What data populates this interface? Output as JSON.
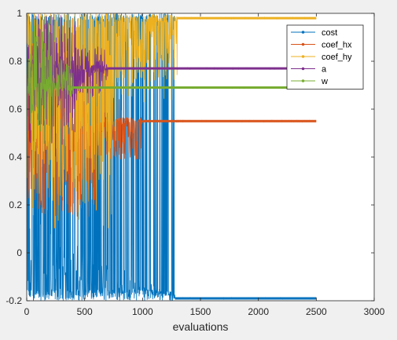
{
  "chart_data": {
    "type": "line",
    "title": "",
    "xlabel": "evaluations",
    "ylabel": "",
    "xlim": [
      0,
      3000
    ],
    "ylim": [
      -0.2,
      1
    ],
    "x_ticks": [
      0,
      500,
      1000,
      1500,
      2000,
      2500,
      3000
    ],
    "y_ticks": [
      -0.2,
      0,
      0.2,
      0.4,
      0.6,
      0.8,
      1
    ],
    "x_tick_labels": [
      "0",
      "500",
      "1000",
      "1500",
      "2000",
      "2500",
      "3000"
    ],
    "y_tick_labels": [
      "-0.2",
      "0",
      "0.2",
      "0.4",
      "0.6",
      "0.8",
      "1"
    ],
    "grid": false,
    "legend_position": "top-right",
    "n_evaluations": 2500,
    "series": [
      {
        "name": "cost",
        "color": "#0072BD",
        "marker": "dot",
        "converged_value": -0.19,
        "converged_after": 1280,
        "explore_range": [
          -0.2,
          1.0
        ],
        "early_band": [
          -0.18,
          0.15
        ]
      },
      {
        "name": "coef_hx",
        "color": "#D95319",
        "marker": "dot",
        "converged_value": 0.55,
        "converged_after": 1000,
        "explore_range": [
          0.1,
          1.0
        ],
        "early_band": [
          0.15,
          0.6
        ]
      },
      {
        "name": "coef_hy",
        "color": "#EDB120",
        "marker": "dot",
        "converged_value": 0.98,
        "converged_after": 1300,
        "explore_range": [
          0.1,
          1.0
        ],
        "early_band": [
          0.3,
          0.98
        ]
      },
      {
        "name": "a",
        "color": "#7E2F8E",
        "marker": "dot",
        "converged_value": 0.77,
        "converged_after": 700,
        "explore_range": [
          0.4,
          1.0
        ],
        "early_band": [
          0.5,
          1.0
        ]
      },
      {
        "name": "w",
        "color": "#77AC30",
        "marker": "dot",
        "converged_value": 0.69,
        "converged_after": 400,
        "explore_range": [
          0.3,
          1.0
        ],
        "early_band": [
          0.5,
          1.0
        ]
      }
    ]
  }
}
